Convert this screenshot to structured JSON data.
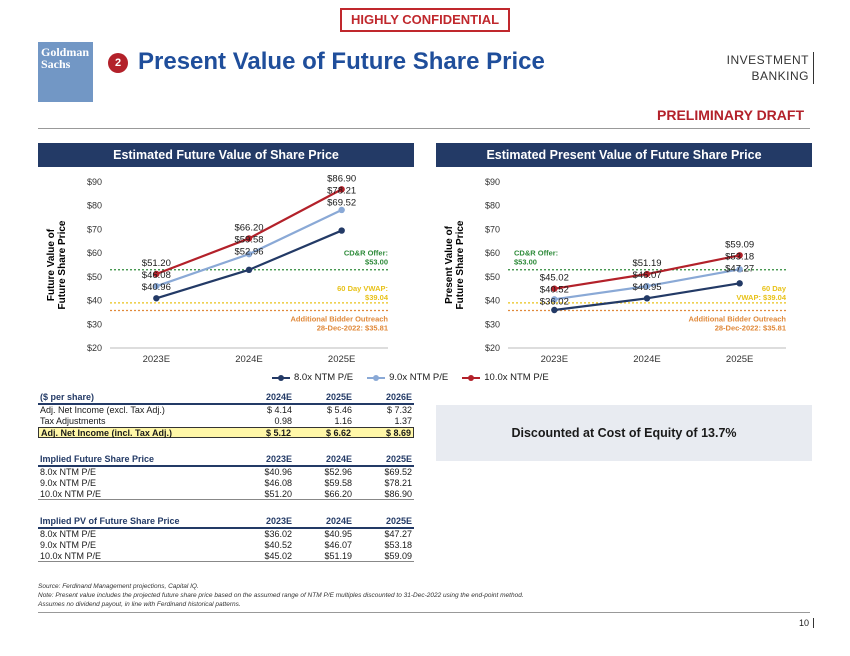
{
  "header": {
    "confidential": "HIGHLY CONFIDENTIAL",
    "logo_line1": "Goldman",
    "logo_line2": "Sachs",
    "section_number": "2",
    "title": "Present Value of Future Share Price",
    "ib_line1": "INVESTMENT",
    "ib_line2": "BANKING",
    "draft": "PRELIMINARY DRAFT"
  },
  "chart_data": [
    {
      "type": "line",
      "title": "Estimated Future Value of Share Price",
      "ylabel": "Future Value of Future Share Price",
      "categories": [
        "2023E",
        "2024E",
        "2025E"
      ],
      "ylim": [
        20,
        90
      ],
      "yticks": [
        "$90",
        "$80",
        "$70",
        "$60",
        "$50",
        "$40",
        "$30",
        "$20"
      ],
      "ytick_values": [
        90,
        80,
        70,
        60,
        50,
        40,
        30,
        20
      ],
      "series": [
        {
          "name": "8.0x NTM P/E",
          "color": "#233a66",
          "values": [
            40.96,
            52.96,
            69.52
          ],
          "labels": [
            "$40.96",
            "$52.96",
            "$69.52"
          ]
        },
        {
          "name": "9.0x NTM P/E",
          "color": "#8aa9d6",
          "values": [
            46.08,
            59.58,
            78.21
          ],
          "labels": [
            "$46.08",
            "$59.58",
            "$78.21"
          ]
        },
        {
          "name": "10.0x NTM P/E",
          "color": "#b3212a",
          "values": [
            51.2,
            66.2,
            86.9
          ],
          "labels": [
            "$51.20",
            "$66.20",
            "$86.90"
          ]
        }
      ],
      "reference_lines": [
        {
          "value": 53.0,
          "color": "#2e8b3a",
          "label1": "CD&R Offer:",
          "label2": "$53.00"
        },
        {
          "value": 39.04,
          "color": "#e8c21a",
          "label1": "60 Day VWAP:",
          "label2": "$39.04"
        },
        {
          "value": 35.81,
          "color": "#e0893a",
          "label1": "Additional Bidder Outreach",
          "label2": "28-Dec-2022: $35.81"
        }
      ]
    },
    {
      "type": "line",
      "title": "Estimated Present Value of Future Share Price",
      "ylabel": "Present Value of Future Share Price",
      "categories": [
        "2023E",
        "2024E",
        "2025E"
      ],
      "ylim": [
        20,
        90
      ],
      "yticks": [
        "$90",
        "$80",
        "$70",
        "$60",
        "$50",
        "$40",
        "$30",
        "$20"
      ],
      "ytick_values": [
        90,
        80,
        70,
        60,
        50,
        40,
        30,
        20
      ],
      "series": [
        {
          "name": "8.0x NTM P/E",
          "color": "#233a66",
          "values": [
            36.02,
            40.95,
            47.27
          ],
          "labels": [
            "$36.02",
            "$40.95",
            "$47.27"
          ]
        },
        {
          "name": "9.0x NTM P/E",
          "color": "#8aa9d6",
          "values": [
            40.52,
            46.07,
            53.18
          ],
          "labels": [
            "$40.52",
            "$46.07",
            "$53.18"
          ]
        },
        {
          "name": "10.0x NTM P/E",
          "color": "#b3212a",
          "values": [
            45.02,
            51.19,
            59.09
          ],
          "labels": [
            "$45.02",
            "$51.19",
            "$59.09"
          ]
        }
      ],
      "reference_lines": [
        {
          "value": 53.0,
          "color": "#2e8b3a",
          "label1": "CD&R Offer:",
          "label2": "$53.00"
        },
        {
          "value": 39.04,
          "color": "#e8c21a",
          "label1": "60 Day",
          "label2": "VWAP: $39.04"
        },
        {
          "value": 35.81,
          "color": "#e0893a",
          "label1": "Additional Bidder Outreach",
          "label2": "28-Dec-2022: $35.81"
        }
      ]
    }
  ],
  "legend": [
    "8.0x NTM P/E",
    "9.0x NTM P/E",
    "10.0x NTM P/E"
  ],
  "table1": {
    "header": [
      "($ per share)",
      "2024E",
      "2025E",
      "2026E"
    ],
    "rows": [
      [
        "Adj. Net Income (excl. Tax Adj.)",
        "$ 4.14",
        "$ 5.46",
        "$ 7.32"
      ],
      [
        "Tax Adjustments",
        "0.98",
        "1.16",
        "1.37"
      ]
    ],
    "highlight": [
      "Adj. Net Income (incl. Tax Adj.)",
      "$ 5.12",
      "$ 6.62",
      "$ 8.69"
    ]
  },
  "table2": {
    "header": [
      "Implied Future Share Price",
      "2023E",
      "2024E",
      "2025E"
    ],
    "rows": [
      [
        "8.0x NTM P/E",
        "$40.96",
        "$52.96",
        "$69.52"
      ],
      [
        "9.0x NTM P/E",
        "$46.08",
        "$59.58",
        "$78.21"
      ],
      [
        "10.0x NTM P/E",
        "$51.20",
        "$66.20",
        "$86.90"
      ]
    ]
  },
  "table3": {
    "header": [
      "Implied PV of Future Share Price",
      "2023E",
      "2024E",
      "2025E"
    ],
    "rows": [
      [
        "8.0x NTM P/E",
        "$36.02",
        "$40.95",
        "$47.27"
      ],
      [
        "9.0x NTM P/E",
        "$40.52",
        "$46.07",
        "$53.18"
      ],
      [
        "10.0x NTM P/E",
        "$45.02",
        "$51.19",
        "$59.09"
      ]
    ]
  },
  "discount_note": "Discounted at Cost of Equity of 13.7%",
  "footnotes": {
    "source": "Source: Ferdinand Management projections, Capital IQ.",
    "note": "Note: Present value includes the projected future share price based on the assumed range of NTM P/E multiples discounted to 31-Dec-2022 using the end-point method.",
    "assumption": "Assumes no dividend payout, in line with Ferdinand historical patterns."
  },
  "page_number": "10"
}
